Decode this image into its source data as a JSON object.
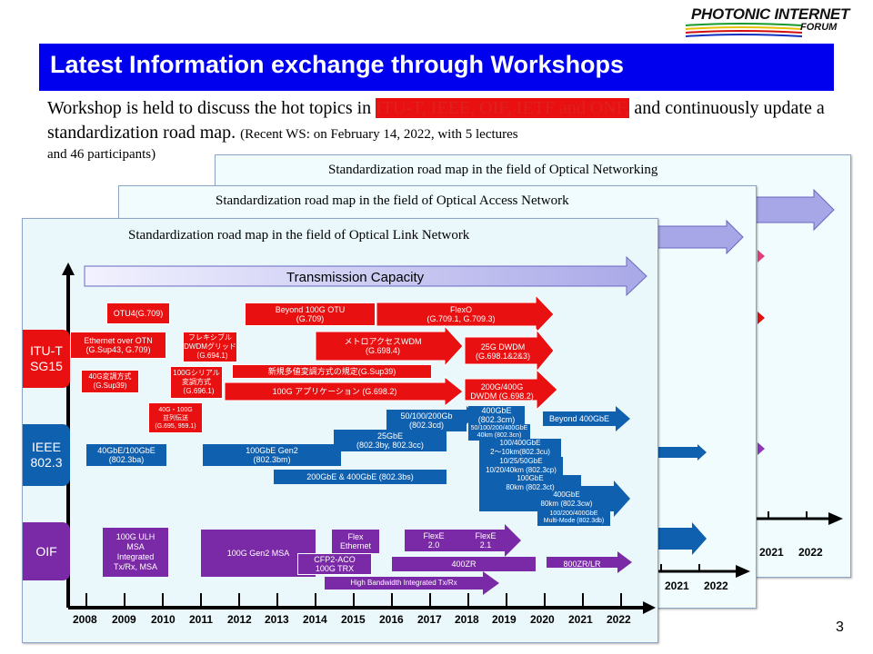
{
  "logo": {
    "top": "PHOTONIC INTERNET",
    "bottom": "FORUM"
  },
  "title": "Latest Information exchange through Workshops",
  "intro": {
    "part1": "Workshop is held to discuss the hot topics in ",
    "orgs": "ITU-T, IEEE, OIF, IETF and ONF,",
    "part2": "  and continuously update a standardization road  map. ",
    "note1": "(Recent WS: on February 14, 2022, with 5 lectures",
    "note2": "and 46 participants)"
  },
  "cards": {
    "back": {
      "title": "Standardization road map in the field of Optical Networking",
      "years": [
        "2021",
        "2022"
      ]
    },
    "middle": {
      "title": "Standardization road map in the field of Optical Access Network",
      "years": [
        "2021",
        "2022"
      ]
    },
    "front": {
      "title": "Standardization road map in the field of Optical Link Network"
    }
  },
  "roadmap": {
    "capacity": "Transmission Capacity",
    "categories": {
      "itu": "ITU-T\nSG15",
      "ieee": "IEEE\n802.3",
      "oif": "OIF"
    },
    "years": [
      "2008",
      "2009",
      "2010",
      "2011",
      "2012",
      "2013",
      "2014",
      "2015",
      "2016",
      "2017",
      "2018",
      "2019",
      "2020",
      "2021",
      "2022"
    ],
    "itu_items": {
      "otu4": "OTU4(G.709)",
      "beyond100": "Beyond 100G OTU\n(G.709)",
      "flexo": "FlexO\n(G.709.1, G.709.3)",
      "eth_otn": "Ethernet over OTN\n(G.Sup43, G.709)",
      "flex_grid": "フレキシブル\nDWDMグリッド\n（G.694.1)",
      "metro": "メトロアクセスWDM\n(G.698.4)",
      "dwdm25": "25G DWDM\n(G.698.1&2&3)",
      "mod40": "40G変調方式\n(G.Sup39)",
      "serial100": "100Gシリアル\n変調方式\n（G.696.1)",
      "multilevel": "新規多値変調方式の規定(G.Sup39)",
      "app100": "100G アプリケーション (G.698.2)",
      "dwdm200": "200G/400G\nDWDM (G.698.2)",
      "parallel": "40G・100G\n並列伝送\n(G.695, 959.1)"
    },
    "ieee_items": {
      "ge50": "50/100/200Gb\n(802.3cd)",
      "ge400cm": "400GbE\n(802.3cm)",
      "beyond400": "Beyond 400GbE",
      "cn": "50/100/200/400GbE\n40km (802.3cn)",
      "ge40": "40GbE/100GbE\n(802.3ba)",
      "gen2": "100GbE Gen2\n(802.3bm)",
      "ge25": "25GbE\n(802.3by, 802.3cc)",
      "cu": "100/400GbE\n2～10km(802.3cu)",
      "cp": "10/25/50GbE\n10/20/40km (802.3cp)",
      "bs": "200GbE & 400GbE (802.3bs)",
      "ct": "100GbE\n80km (802.3ct)",
      "cw": "400GbE\n80km (802.3cw)",
      "db": "100/200/400GbE\nMulti-Mode (802.3db)"
    },
    "oif_items": {
      "ulh": "100G ULH\nMSA\nIntegrated\nTx/Rx, MSA",
      "gen2msa": "100G Gen2 MSA",
      "flexeth": "Flex\nEthernet",
      "flexe20": "FlexE\n2.0",
      "flexe21": "FlexE\n2.1",
      "cfp2": "CFP2-ACO\n100G TRX",
      "zr400": "400ZR",
      "zr800": "800ZR/LR",
      "hb": "High Bandwidth Integrated  Tx/Rx"
    }
  },
  "page_number": "3",
  "colors": {
    "title_bar": "#0000ee",
    "itu_red": "#e81010",
    "ieee_blue": "#1060b0",
    "oif_purple": "#7a2aa6",
    "highlight_red": "#e02020"
  }
}
